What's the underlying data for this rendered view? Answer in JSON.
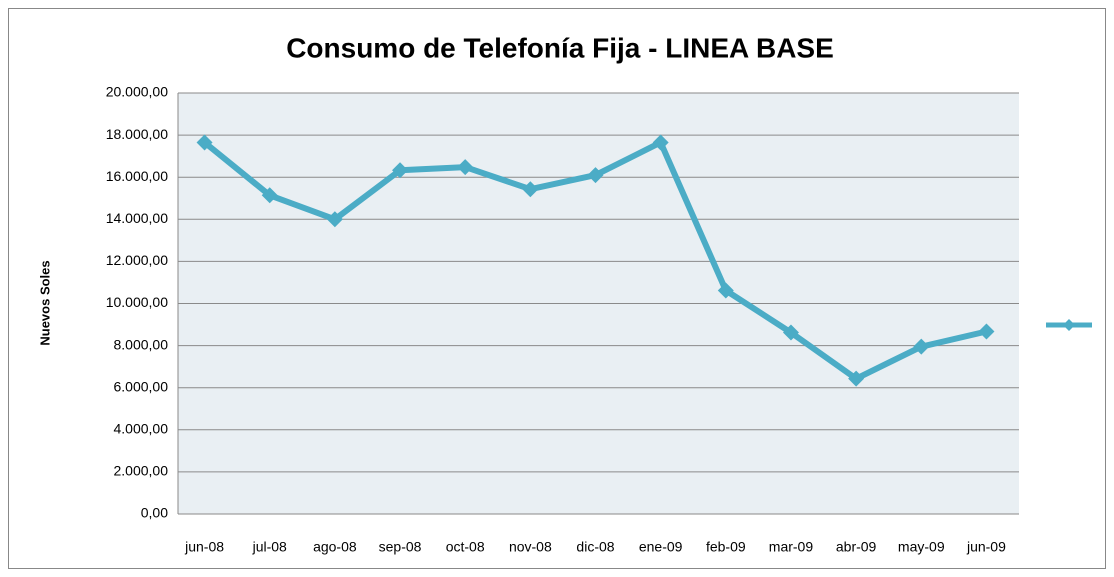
{
  "chart_data": {
    "type": "line",
    "title": "Consumo de Telefonía Fija - LINEA BASE",
    "y_label": "Nuevos Soles",
    "categories": [
      "jun-08",
      "jul-08",
      "ago-08",
      "sep-08",
      "oct-08",
      "nov-08",
      "dic-08",
      "ene-09",
      "feb-09",
      "mar-09",
      "abr-09",
      "may-09",
      "jun-09"
    ],
    "series": [
      {
        "color": "#4bacc6",
        "values": [
          17650,
          15140,
          14000,
          16330,
          16480,
          15430,
          16100,
          17650,
          10620,
          8620,
          6430,
          7950,
          8670
        ]
      }
    ],
    "ylim": [
      0,
      20000
    ],
    "yticks": [
      {
        "value": 0,
        "label": "0,00"
      },
      {
        "value": 2000,
        "label": "2.000,00"
      },
      {
        "value": 4000,
        "label": "4.000,00"
      },
      {
        "value": 6000,
        "label": "6.000,00"
      },
      {
        "value": 8000,
        "label": "8.000,00"
      },
      {
        "value": 10000,
        "label": "10.000,00"
      },
      {
        "value": 12000,
        "label": "12.000,00"
      },
      {
        "value": 14000,
        "label": "14.000,00"
      },
      {
        "value": 16000,
        "label": "16.000,00"
      },
      {
        "value": 18000,
        "label": "18.000,00"
      },
      {
        "value": 20000,
        "label": "20.000,00"
      }
    ],
    "grid": true,
    "legend": "right"
  }
}
